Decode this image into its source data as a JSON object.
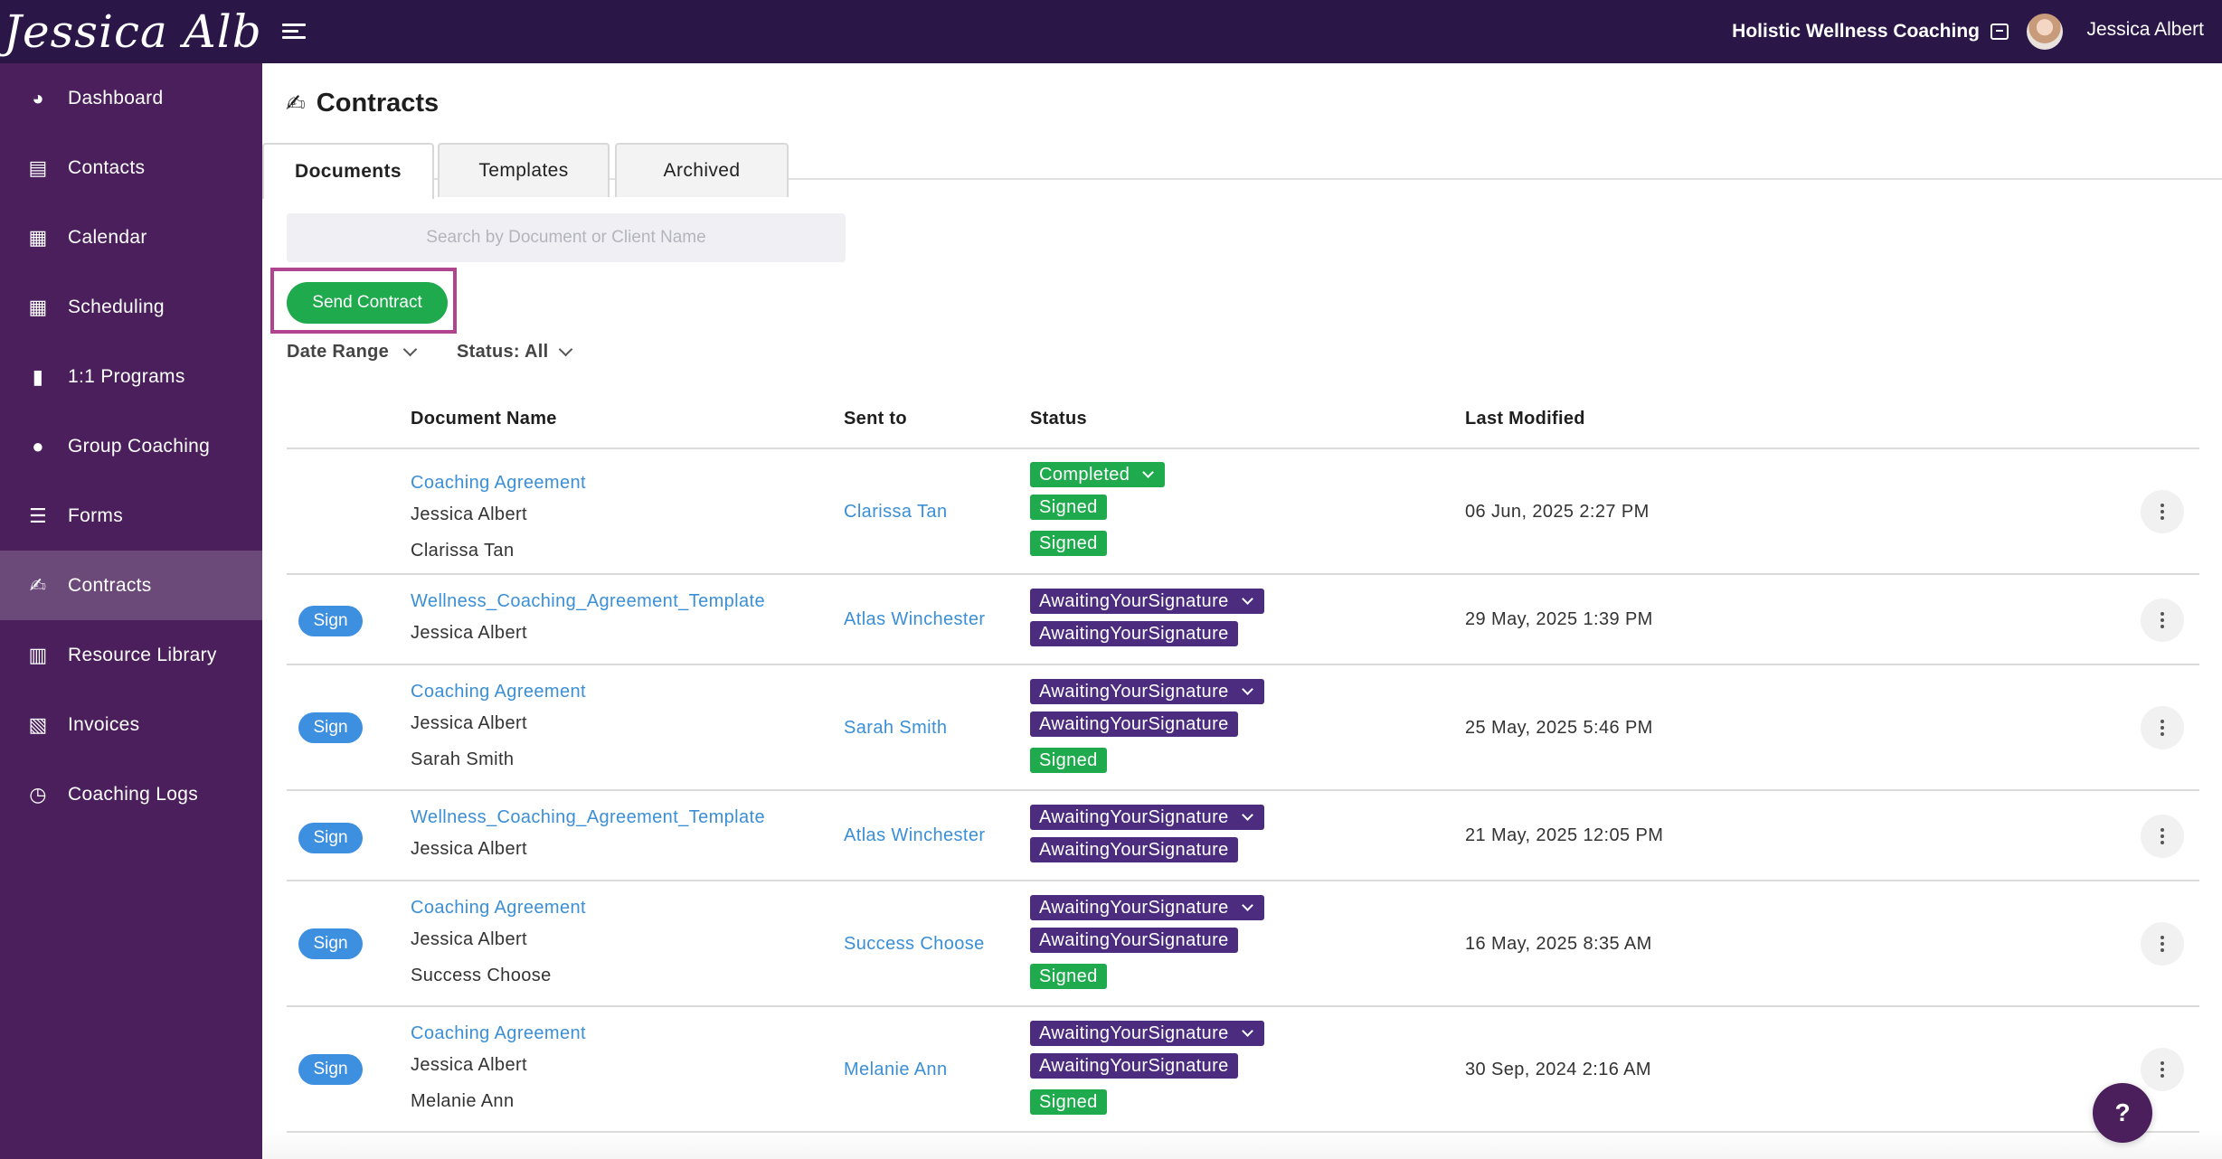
{
  "header": {
    "brand": "Jessica Albert",
    "business_name": "Holistic Wellness Coaching",
    "user_name": "Jessica Albert"
  },
  "sidebar": {
    "items": [
      {
        "label": "Dashboard",
        "icon": "dashboard-icon"
      },
      {
        "label": "Contacts",
        "icon": "contacts-icon"
      },
      {
        "label": "Calendar",
        "icon": "calendar-icon"
      },
      {
        "label": "Scheduling",
        "icon": "scheduling-icon"
      },
      {
        "label": "1:1 Programs",
        "icon": "book-icon"
      },
      {
        "label": "Group Coaching",
        "icon": "group-icon"
      },
      {
        "label": "Forms",
        "icon": "list-check-icon"
      },
      {
        "label": "Contracts",
        "icon": "signature-icon",
        "active": true
      },
      {
        "label": "Resource Library",
        "icon": "library-icon"
      },
      {
        "label": "Invoices",
        "icon": "invoice-icon"
      },
      {
        "label": "Coaching Logs",
        "icon": "clock-icon"
      }
    ]
  },
  "page": {
    "title": "Contracts",
    "tabs": [
      "Documents",
      "Templates",
      "Archived"
    ],
    "active_tab": "Documents",
    "search_placeholder": "Search by Document or Client Name",
    "send_button": "Send Contract",
    "filters": {
      "date_range": "Date Range",
      "status": "Status: All"
    }
  },
  "table": {
    "columns": [
      "Document Name",
      "Sent to",
      "Status",
      "Last Modified"
    ],
    "sign_label": "Sign",
    "rows": [
      {
        "document": "Coaching Agreement",
        "signers": [
          "Jessica Albert",
          "Clarissa Tan"
        ],
        "sent_to": "Clarissa Tan",
        "status": "Completed",
        "signer_status": [
          "Signed",
          "Signed"
        ],
        "modified": "06 Jun, 2025 2:27 PM",
        "sign": false
      },
      {
        "document": "Wellness_Coaching_Agreement_Template",
        "signers": [
          "Jessica Albert"
        ],
        "sent_to": "Atlas Winchester",
        "status": "AwaitingYourSignature",
        "signer_status": [
          "AwaitingYourSignature"
        ],
        "modified": "29 May, 2025 1:39 PM",
        "sign": true
      },
      {
        "document": "Coaching Agreement",
        "signers": [
          "Jessica Albert",
          "Sarah Smith"
        ],
        "sent_to": "Sarah Smith",
        "status": "AwaitingYourSignature",
        "signer_status": [
          "AwaitingYourSignature",
          "Signed"
        ],
        "modified": "25 May, 2025 5:46 PM",
        "sign": true
      },
      {
        "document": "Wellness_Coaching_Agreement_Template",
        "signers": [
          "Jessica Albert"
        ],
        "sent_to": "Atlas Winchester",
        "status": "AwaitingYourSignature",
        "signer_status": [
          "AwaitingYourSignature"
        ],
        "modified": "21 May, 2025 12:05 PM",
        "sign": true
      },
      {
        "document": "Coaching Agreement",
        "signers": [
          "Jessica Albert",
          "Success Choose"
        ],
        "sent_to": "Success Choose",
        "status": "AwaitingYourSignature",
        "signer_status": [
          "AwaitingYourSignature",
          "Signed"
        ],
        "modified": "16 May, 2025 8:35 AM",
        "sign": true
      },
      {
        "document": "Coaching Agreement",
        "signers": [
          "Jessica Albert",
          "Melanie Ann"
        ],
        "sent_to": "Melanie Ann",
        "status": "AwaitingYourSignature",
        "signer_status": [
          "AwaitingYourSignature",
          "Signed"
        ],
        "modified": "30 Sep, 2024 2:16 AM",
        "sign": true
      }
    ]
  },
  "help_label": "?",
  "colors": {
    "topbar": "#2a1647",
    "sidebar": "#4a1f5c",
    "sidebar_active": "#6b4a7a",
    "accent_green": "#1faa4d",
    "status_purple": "#4b2c7e",
    "link_blue": "#3b8fd6",
    "sign_blue": "#3d8fe0",
    "highlight": "#b0448e"
  }
}
